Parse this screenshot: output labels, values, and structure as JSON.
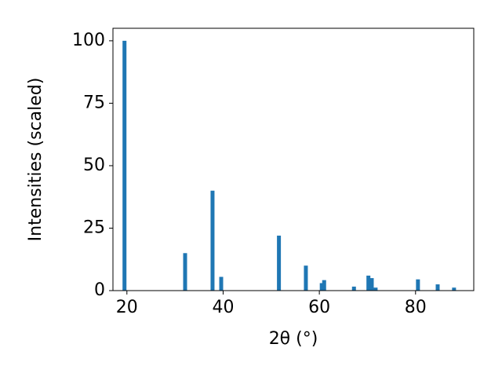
{
  "chart_data": {
    "type": "bar",
    "x_label": "2θ (°)",
    "y_label": "Intensities (scaled)",
    "x": [
      19.5,
      32.1,
      37.8,
      39.6,
      51.6,
      57.2,
      60.5,
      61.0,
      67.2,
      70.2,
      70.9,
      71.7,
      80.5,
      84.6,
      88.0
    ],
    "values": [
      100,
      15,
      40,
      5.5,
      22,
      10,
      3,
      4.2,
      1.6,
      6,
      5,
      1.2,
      4.5,
      2.5,
      1.2
    ],
    "color": "#1f77b4",
    "xlim": [
      17.1,
      92.1
    ],
    "xticks": [
      20,
      40,
      60,
      80
    ],
    "ylim": [
      0,
      105
    ],
    "yticks": [
      0,
      25,
      50,
      75,
      100
    ],
    "grid": false
  }
}
